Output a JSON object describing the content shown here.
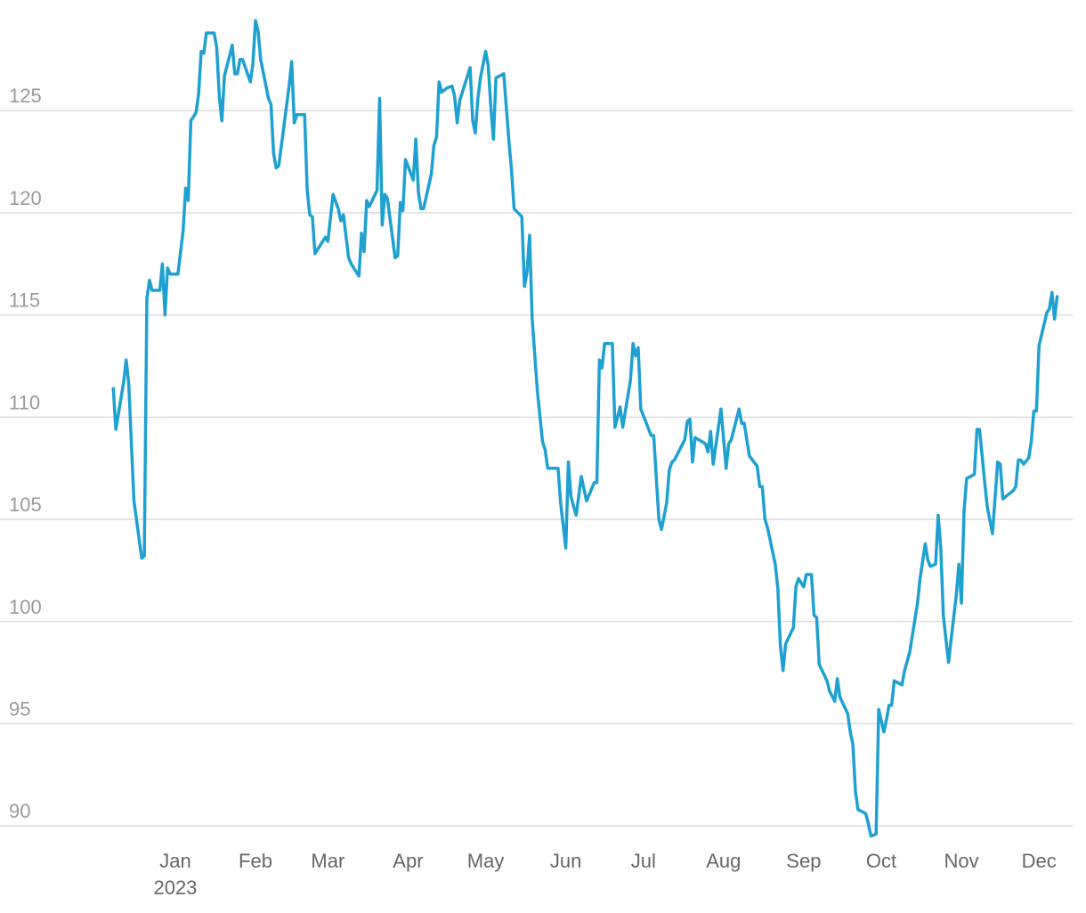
{
  "chart_data": {
    "type": "line",
    "x_year_label": "2023",
    "xlim": [
      -67.8,
      347
    ],
    "ylim": [
      89.4,
      129.8
    ],
    "grid": true,
    "xticks": [
      {
        "value": 0,
        "label": "Jan"
      },
      {
        "value": 31,
        "label": "Feb"
      },
      {
        "value": 59,
        "label": "Mar"
      },
      {
        "value": 90,
        "label": "Apr"
      },
      {
        "value": 120,
        "label": "May"
      },
      {
        "value": 151,
        "label": "Jun"
      },
      {
        "value": 181,
        "label": "Jul"
      },
      {
        "value": 212,
        "label": "Aug"
      },
      {
        "value": 243,
        "label": "Sep"
      },
      {
        "value": 273,
        "label": "Oct"
      },
      {
        "value": 304,
        "label": "Nov"
      },
      {
        "value": 334,
        "label": "Dec"
      }
    ],
    "yticks": [
      90,
      95,
      100,
      105,
      110,
      115,
      120,
      125
    ],
    "x": [
      -24,
      -23,
      -20,
      -19,
      -18,
      -16,
      -13,
      -12,
      -11,
      -10,
      -9,
      -6,
      -5,
      -4,
      -3,
      -2,
      1,
      3,
      4,
      5,
      6,
      8,
      9,
      10,
      11,
      12,
      15,
      16,
      17,
      18,
      19,
      22,
      23,
      24,
      25,
      26,
      29,
      30,
      31,
      32,
      33,
      36,
      37,
      38,
      39,
      40,
      44,
      45,
      46,
      47,
      50,
      51,
      52,
      53,
      54,
      57,
      58,
      59,
      61,
      63,
      64,
      65,
      67,
      68,
      71,
      72,
      73,
      74,
      75,
      78,
      79,
      80,
      81,
      82,
      85,
      86,
      87,
      88,
      89,
      92,
      93,
      94,
      95,
      96,
      99,
      100,
      101,
      102,
      103,
      105,
      107,
      108,
      109,
      110,
      114,
      115,
      116,
      117,
      118,
      120,
      121,
      122,
      123,
      124,
      127,
      129,
      130,
      131,
      134,
      135,
      136,
      137,
      138,
      140,
      142,
      143,
      144,
      148,
      149,
      151,
      152,
      153,
      155,
      157,
      159,
      162,
      163,
      164,
      165,
      166,
      169,
      170,
      172,
      173,
      176,
      177,
      178,
      179,
      180,
      184,
      185,
      186,
      187,
      188,
      190,
      191,
      192,
      193,
      197,
      198,
      199,
      200,
      201,
      205,
      206,
      207,
      208,
      209,
      211,
      213,
      214,
      215,
      218,
      219,
      220,
      222,
      225,
      226,
      227,
      228,
      229,
      232,
      233,
      234,
      235,
      236,
      239,
      240,
      241,
      243,
      244,
      246,
      247,
      248,
      249,
      252,
      253,
      255,
      256,
      257,
      260,
      261,
      262,
      263,
      264,
      267,
      268,
      269,
      271,
      272,
      274,
      275,
      276,
      277,
      278,
      281,
      282,
      284,
      287,
      288,
      290,
      291,
      292,
      294,
      295,
      296,
      297,
      299,
      302,
      303,
      304,
      305,
      306,
      309,
      310,
      311,
      313,
      314,
      316,
      318,
      319,
      320,
      324,
      325,
      326,
      327,
      328,
      330,
      331,
      332,
      333,
      334,
      337,
      338,
      339,
      340,
      341
    ],
    "series": [
      {
        "color": "#1ea0d0",
        "values": [
          111.4,
          109.4,
          111.7,
          112.8,
          111.6,
          105.9,
          103.1,
          103.2,
          115.8,
          116.7,
          116.2,
          116.2,
          117.5,
          115.0,
          117.3,
          117.0,
          117.0,
          119.1,
          121.2,
          120.6,
          124.5,
          124.9,
          125.8,
          127.9,
          127.8,
          128.8,
          128.8,
          128.1,
          125.7,
          124.5,
          126.7,
          128.2,
          126.8,
          126.8,
          127.5,
          127.5,
          126.4,
          127.3,
          129.4,
          128.9,
          127.5,
          125.6,
          125.3,
          122.9,
          122.2,
          122.3,
          126.2,
          127.4,
          124.4,
          124.8,
          124.8,
          121.1,
          119.9,
          119.8,
          118.0,
          118.6,
          118.8,
          118.6,
          120.9,
          120.2,
          119.6,
          119.9,
          117.8,
          117.5,
          116.9,
          119.0,
          118.1,
          120.6,
          120.3,
          121.1,
          125.6,
          119.4,
          120.9,
          120.7,
          117.8,
          117.9,
          120.5,
          120.1,
          122.6,
          121.6,
          123.6,
          121.0,
          120.2,
          120.2,
          121.9,
          123.3,
          123.7,
          126.4,
          125.9,
          126.1,
          126.2,
          125.7,
          124.4,
          125.5,
          127.1,
          124.5,
          123.9,
          125.6,
          126.6,
          127.9,
          127.2,
          125.2,
          123.6,
          126.6,
          126.8,
          123.5,
          122.1,
          120.2,
          119.8,
          116.4,
          117.1,
          118.9,
          114.8,
          111.3,
          108.8,
          108.4,
          107.5,
          107.5,
          105.8,
          103.6,
          107.8,
          106.1,
          105.2,
          107.1,
          105.9,
          106.8,
          106.8,
          112.8,
          112.4,
          113.6,
          113.6,
          109.5,
          110.5,
          109.5,
          111.8,
          113.6,
          113.0,
          113.4,
          110.4,
          109.1,
          109.1,
          107.0,
          105.0,
          104.5,
          105.8,
          107.4,
          107.8,
          107.9,
          108.9,
          109.8,
          109.9,
          107.8,
          109.0,
          108.7,
          108.3,
          109.3,
          107.7,
          108.6,
          110.4,
          107.5,
          108.7,
          108.9,
          110.4,
          109.7,
          109.7,
          108.1,
          107.6,
          106.6,
          106.6,
          105.0,
          104.6,
          102.8,
          101.6,
          98.8,
          97.6,
          98.9,
          99.7,
          101.7,
          102.1,
          101.7,
          102.3,
          102.3,
          100.3,
          100.2,
          97.9,
          97.1,
          96.6,
          96.1,
          97.2,
          96.3,
          95.5,
          94.6,
          94.0,
          91.7,
          90.8,
          90.6,
          90.1,
          89.5,
          89.6,
          95.7,
          94.6,
          95.2,
          95.9,
          95.9,
          97.1,
          96.9,
          97.6,
          98.5,
          100.9,
          102.1,
          103.8,
          103.0,
          102.7,
          102.8,
          105.2,
          103.6,
          100.3,
          98.0,
          101.3,
          102.8,
          100.9,
          105.4,
          107.0,
          107.2,
          109.4,
          109.4,
          106.8,
          105.6,
          104.3,
          107.8,
          107.7,
          106.0,
          106.4,
          106.6,
          107.9,
          107.9,
          107.7,
          108.0,
          108.8,
          110.3,
          110.3,
          113.5,
          115.1,
          115.3,
          116.1,
          114.8,
          115.9
        ]
      }
    ]
  }
}
